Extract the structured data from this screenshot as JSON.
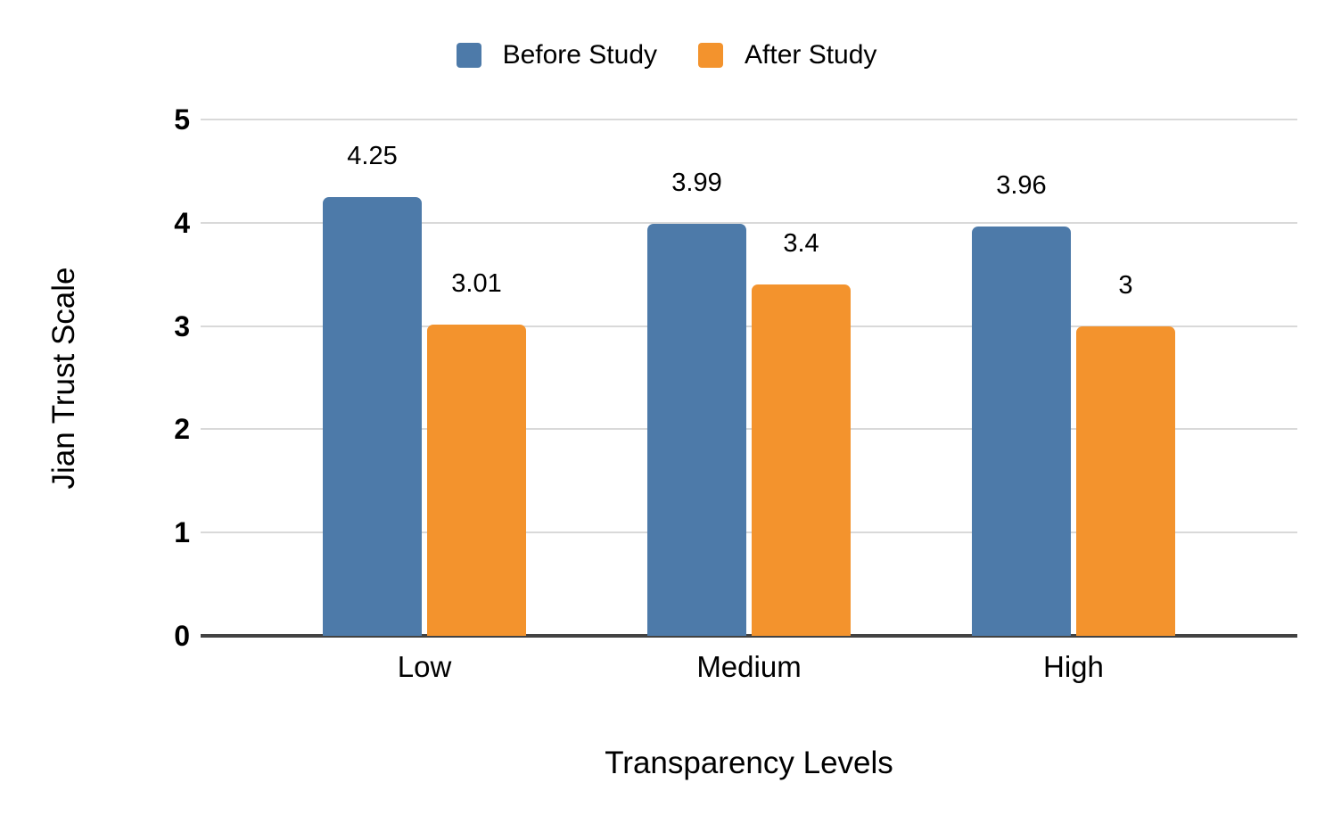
{
  "chart_data": {
    "type": "bar",
    "title": "",
    "categories": [
      "Low",
      "Medium",
      "High"
    ],
    "series": [
      {
        "name": "Before Study",
        "color": "#4d7aa9",
        "values": [
          4.25,
          3.99,
          3.96
        ],
        "labels": [
          "4.25",
          "3.99",
          "3.96"
        ]
      },
      {
        "name": "After Study",
        "color": "#f3932d",
        "values": [
          3.01,
          3.4,
          3.0
        ],
        "labels": [
          "3.01",
          "3.4",
          "3"
        ]
      }
    ],
    "xlabel": "Transparency Levels",
    "ylabel": "Jian Trust Scale",
    "ylim": [
      0,
      5
    ],
    "yticks": [
      0,
      1,
      2,
      3,
      4,
      5
    ],
    "grid": true,
    "legend_position": "top",
    "colors": {
      "gridline": "#d9d9d9",
      "axis_line": "#424242",
      "text": "#000000",
      "background": "#ffffff"
    }
  }
}
